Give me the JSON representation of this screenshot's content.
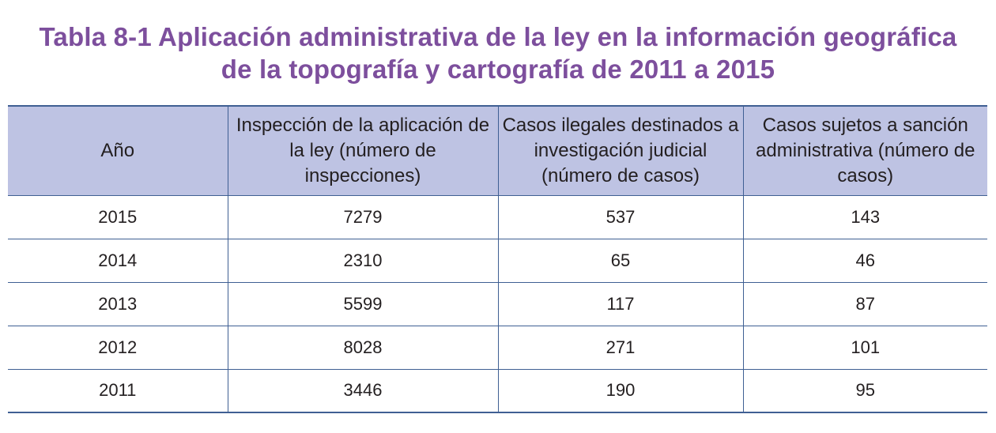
{
  "title": {
    "line1": "Tabla 8-1 Aplicación administrativa de la ley en la información geográfica",
    "line2": "de la topografía y cartografía de 2011 a 2015"
  },
  "table": {
    "headers": [
      "Año",
      "Inspección de la aplicación de la ley (número de inspecciones)",
      "Casos ilegales destinados a investigación judicial (número de casos)",
      "Casos sujetos a sanción administrativa (número de casos)"
    ],
    "rows": [
      [
        "2015",
        "7279",
        "537",
        "143"
      ],
      [
        "2014",
        "2310",
        "65",
        "46"
      ],
      [
        "2013",
        "5599",
        "117",
        "87"
      ],
      [
        "2012",
        "8028",
        "271",
        "101"
      ],
      [
        "2011",
        "3446",
        "190",
        "95"
      ]
    ]
  },
  "colors": {
    "title": "#7d4f9d",
    "header_background": "#bec3e3",
    "rule": "#3f5f93",
    "text": "#231f20"
  }
}
